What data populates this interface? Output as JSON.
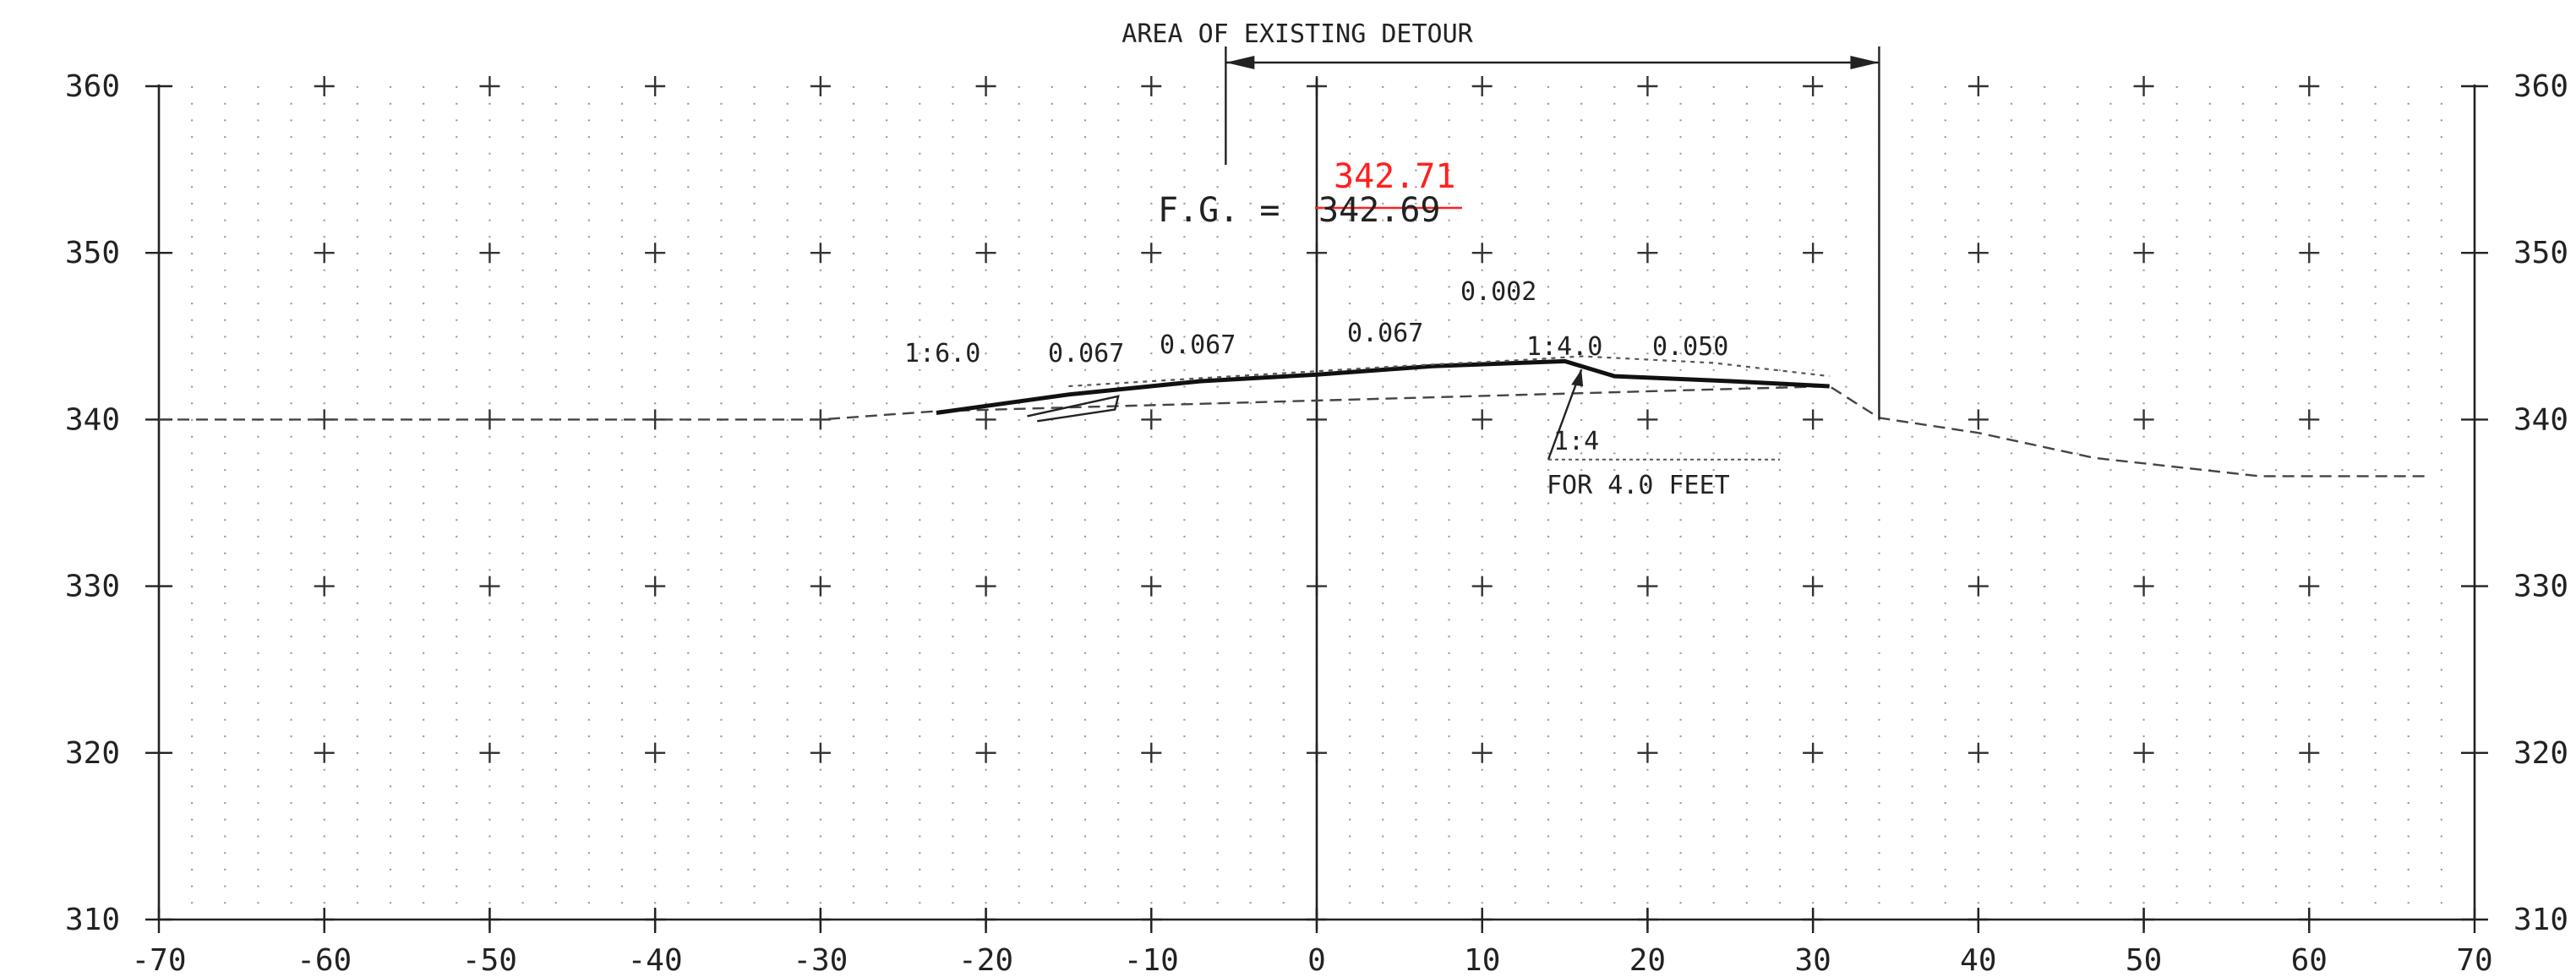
{
  "chart_data": {
    "type": "line",
    "title": "",
    "xlabel": "",
    "ylabel": "",
    "xlim": [
      -70,
      70
    ],
    "ylim": [
      310,
      360
    ],
    "x_ticks": [
      -70,
      -60,
      -50,
      -40,
      -30,
      -20,
      -10,
      0,
      10,
      20,
      30,
      40,
      50,
      60,
      70
    ],
    "y_ticks": [
      310,
      320,
      330,
      340,
      350,
      360
    ],
    "x_tick_labels": [
      "-70",
      "-60",
      "-50",
      "-40",
      "-30",
      "-20",
      "-10",
      "0",
      "10",
      "20",
      "30",
      "40",
      "50",
      "60",
      "70"
    ],
    "y_tick_labels": [
      "310",
      "320",
      "330",
      "340",
      "350",
      "360"
    ],
    "grid": true,
    "series": [
      {
        "role": "existing-ground",
        "x": [
          -70,
          -50,
          -30,
          -23,
          31,
          34,
          40,
          47,
          57,
          67
        ],
        "y": [
          340,
          340,
          340,
          340.5,
          342,
          340.1,
          339.2,
          337.7,
          336.6,
          336.6
        ]
      },
      {
        "role": "proposed-section",
        "x": [
          -23,
          -15,
          -7,
          0,
          7,
          15,
          18,
          25,
          31
        ],
        "y": [
          340.4,
          341.5,
          342.3,
          342.7,
          343.2,
          343.5,
          342.6,
          342.3,
          342
        ]
      },
      {
        "role": "detour-surface",
        "x": [
          -15,
          -5,
          5,
          13,
          16,
          24,
          31
        ],
        "y": [
          342,
          342.6,
          343.2,
          343.6,
          343.8,
          343.4,
          342.6
        ]
      }
    ],
    "annotations": {
      "detour_label": "AREA OF EXISTING DETOUR",
      "detour_extent": [
        -5.5,
        34
      ],
      "fg_label": "F.G. =",
      "fg_old": "342.69",
      "fg_new": "342.71",
      "slopes": [
        "1:6.0",
        "0.067",
        "0.067",
        "0.067",
        "0.002",
        "1:4.0",
        "0.050",
        "1:4",
        "FOR 4.0 FEET"
      ]
    },
    "colors": {
      "ink": "#222222",
      "grid": "#9a9a9a",
      "revision": "#ff2020"
    }
  }
}
